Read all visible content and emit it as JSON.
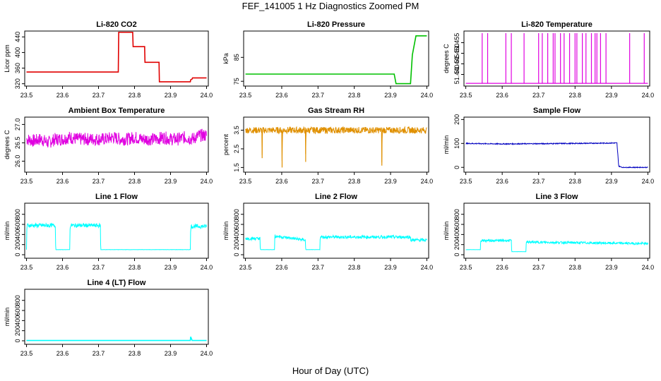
{
  "title": "FEF_141005  1 Hz Diagnostics Zoomed PM",
  "xlabel": "Hour of Day (UTC)",
  "chart_data": [
    {
      "type": "line",
      "title": "Li-820 CO2",
      "ylabel": "Licor ppm",
      "color": "#e00000",
      "xlim": [
        23.495,
        24.005
      ],
      "ylim": [
        314,
        455
      ],
      "yticks": [
        "320",
        "360",
        "400",
        "440"
      ],
      "xticks": [
        "23.5",
        "23.6",
        "23.7",
        "23.8",
        "23.9",
        "24.0"
      ],
      "x": [
        23.5,
        23.755,
        23.756,
        23.795,
        23.796,
        23.828,
        23.829,
        23.868,
        23.869,
        23.955,
        23.956,
        23.96,
        23.961,
        24.0
      ],
      "y": [
        350,
        350,
        452,
        452,
        415,
        415,
        375,
        375,
        325,
        325,
        330,
        332,
        335,
        335
      ]
    },
    {
      "type": "line",
      "title": "Li-820 Pressure",
      "ylabel": "kPa",
      "color": "#00c000",
      "xlim": [
        23.495,
        24.005
      ],
      "ylim": [
        73,
        96
      ],
      "yticks": [
        "75",
        "85"
      ],
      "xticks": [
        "23.5",
        "23.6",
        "23.7",
        "23.8",
        "23.9",
        "24.0"
      ],
      "x": [
        23.5,
        23.91,
        23.915,
        23.955,
        23.96,
        23.97,
        24.0
      ],
      "y": [
        78,
        78,
        74,
        74,
        86,
        94,
        94
      ]
    },
    {
      "type": "line",
      "title": "Li-820 Temperature",
      "ylabel": "degrees C",
      "color": "#e000e0",
      "xlim": [
        23.495,
        24.005
      ],
      "ylim": [
        51.4345,
        51.4605
      ],
      "yticks": [
        "51.440",
        "51.445",
        "51.450",
        "51.455"
      ],
      "xticks": [
        "23.5",
        "23.6",
        "23.7",
        "23.8",
        "23.9",
        "24.0"
      ],
      "baseline": 51.4358,
      "spike_top": 51.4595,
      "spikes": [
        23.545,
        23.56,
        23.61,
        23.625,
        23.66,
        23.7,
        23.71,
        23.725,
        23.74,
        23.745,
        23.76,
        23.77,
        23.785,
        23.8,
        23.805,
        23.82,
        23.83,
        23.845,
        23.855,
        23.86,
        23.87,
        23.885,
        23.95,
        23.99
      ]
    },
    {
      "type": "line",
      "title": "Ambient Box Temperature",
      "ylabel": "degrees C",
      "color": "#e000e0",
      "xlim": [
        23.495,
        24.005
      ],
      "ylim": [
        25.7,
        27.2
      ],
      "yticks": [
        "26.0",
        "26.5",
        "27.0"
      ],
      "xticks": [
        "23.5",
        "23.6",
        "23.7",
        "23.8",
        "23.9",
        "24.0"
      ],
      "x": [
        23.5,
        23.52,
        23.54,
        23.56,
        23.58,
        23.6,
        23.62,
        23.64,
        23.66,
        23.68,
        23.7,
        23.72,
        23.74,
        23.76,
        23.78,
        23.8,
        23.82,
        23.84,
        23.86,
        23.88,
        23.9,
        23.92,
        23.94,
        23.96,
        23.98,
        24.0
      ],
      "y": [
        26.6,
        26.55,
        26.6,
        26.5,
        26.6,
        26.6,
        26.65,
        26.6,
        26.6,
        26.6,
        26.6,
        26.6,
        26.65,
        26.6,
        26.6,
        26.65,
        26.6,
        26.6,
        26.6,
        26.65,
        26.6,
        26.6,
        26.65,
        26.6,
        26.7,
        26.7
      ]
    },
    {
      "type": "line",
      "title": "Gas Stream RH",
      "ylabel": "percent",
      "color": "#e09000",
      "xlim": [
        23.495,
        24.005
      ],
      "ylim": [
        1.25,
        4.2
      ],
      "yticks": [
        "1.5",
        "2.5",
        "3.5"
      ],
      "xticks": [
        "23.5",
        "23.6",
        "23.7",
        "23.8",
        "23.9",
        "24.0"
      ],
      "x": [
        23.5,
        23.545,
        23.546,
        23.547,
        23.6,
        23.601,
        23.602,
        23.665,
        23.666,
        23.667,
        23.875,
        23.876,
        23.877,
        24.0
      ],
      "y": [
        3.5,
        3.5,
        2.0,
        3.5,
        3.5,
        1.5,
        3.5,
        3.5,
        1.8,
        3.5,
        3.5,
        1.6,
        3.5,
        3.5
      ]
    },
    {
      "type": "line",
      "title": "Sample Flow",
      "ylabel": "ml/min",
      "color": "#0000c0",
      "xlim": [
        23.495,
        24.005
      ],
      "ylim": [
        -20,
        210
      ],
      "yticks": [
        "0",
        "100",
        "200"
      ],
      "xticks": [
        "23.5",
        "23.6",
        "23.7",
        "23.8",
        "23.9",
        "24.0"
      ],
      "x": [
        23.5,
        23.6,
        23.7,
        23.8,
        23.915,
        23.92,
        23.93,
        24.0
      ],
      "y": [
        100,
        98,
        99,
        100,
        102,
        5,
        0,
        0
      ]
    },
    {
      "type": "line",
      "title": "Line 1 Flow",
      "ylabel": "ml/min",
      "color": "#00ffff",
      "xlim": [
        23.495,
        24.005
      ],
      "ylim": [
        -70,
        1020
      ],
      "yticks": [
        "0",
        "200",
        "400",
        "600",
        "800"
      ],
      "xticks": [
        "23.5",
        "23.6",
        "23.7",
        "23.8",
        "23.9",
        "24.0"
      ],
      "x": [
        23.5,
        23.501,
        23.58,
        23.581,
        23.62,
        23.621,
        23.705,
        23.706,
        23.955,
        23.956,
        24.0
      ],
      "y": [
        100,
        580,
        580,
        100,
        100,
        580,
        580,
        100,
        100,
        560,
        560
      ]
    },
    {
      "type": "line",
      "title": "Line 2 Flow",
      "ylabel": "ml/min",
      "color": "#00ffff",
      "xlim": [
        23.495,
        24.005
      ],
      "ylim": [
        -70,
        1020
      ],
      "yticks": [
        "0",
        "200",
        "400",
        "600",
        "800"
      ],
      "xticks": [
        "23.5",
        "23.6",
        "23.7",
        "23.8",
        "23.9",
        "24.0"
      ],
      "x": [
        23.5,
        23.54,
        23.541,
        23.58,
        23.581,
        23.665,
        23.666,
        23.705,
        23.706,
        23.955,
        23.956,
        24.0
      ],
      "y": [
        320,
        320,
        100,
        100,
        370,
        290,
        100,
        100,
        350,
        350,
        290,
        290
      ]
    },
    {
      "type": "line",
      "title": "Line 3 Flow",
      "ylabel": "ml/min",
      "color": "#00ffff",
      "xlim": [
        23.495,
        24.005
      ],
      "ylim": [
        -70,
        1020
      ],
      "yticks": [
        "0",
        "200",
        "400",
        "600",
        "800"
      ],
      "xticks": [
        "23.5",
        "23.6",
        "23.7",
        "23.8",
        "23.9",
        "24.0"
      ],
      "x": [
        23.5,
        23.501,
        23.54,
        23.541,
        23.625,
        23.626,
        23.665,
        23.666,
        24.0
      ],
      "y": [
        100,
        100,
        100,
        280,
        280,
        60,
        60,
        250,
        220
      ]
    },
    {
      "type": "line",
      "title": "Line 4 (LT) Flow",
      "ylabel": "ml/min",
      "color": "#00ffff",
      "xlim": [
        23.495,
        24.005
      ],
      "ylim": [
        -70,
        1020
      ],
      "yticks": [
        "0",
        "200",
        "400",
        "600",
        "800"
      ],
      "xticks": [
        "23.5",
        "23.6",
        "23.7",
        "23.8",
        "23.9",
        "24.0"
      ],
      "x": [
        23.5,
        23.955,
        23.956,
        23.96,
        24.0
      ],
      "y": [
        5,
        5,
        80,
        5,
        5
      ]
    }
  ]
}
